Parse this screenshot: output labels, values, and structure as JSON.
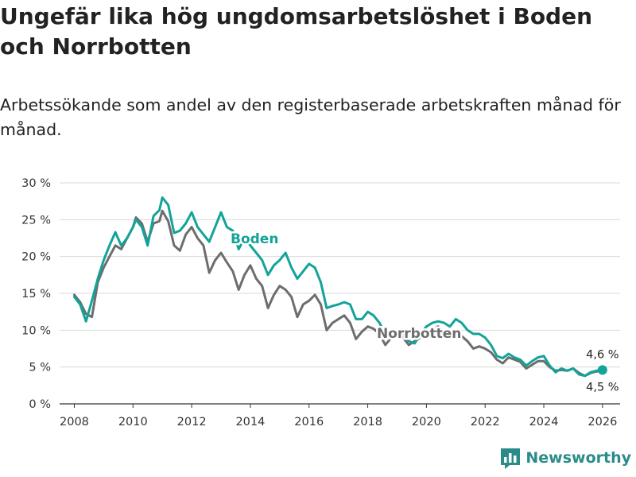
{
  "header": {
    "title": "Ungefär lika hög ungdomsarbetslöshet i Boden och Norrbotten",
    "subtitle": "Arbetssökande som andel av den registerbaserade arbetskraften månad för månad."
  },
  "branding": {
    "name": "Newsworthy",
    "logo_icon": "bar-chart-logo-icon"
  },
  "chart_data": {
    "type": "line",
    "title": "Ungefär lika hög ungdomsarbetslöshet i Boden och Norrbotten",
    "subtitle": "Arbetssökande som andel av den registerbaserade arbetskraften månad för månad.",
    "xlabel": "",
    "ylabel": "",
    "xlim": [
      2007.5,
      2026.6
    ],
    "ylim": [
      0,
      30
    ],
    "x_ticks": [
      2008,
      2010,
      2012,
      2014,
      2016,
      2018,
      2020,
      2022,
      2024,
      2026
    ],
    "x_tick_labels": [
      "2008",
      "2010",
      "2012",
      "2014",
      "2016",
      "2018",
      "2020",
      "2022",
      "2024",
      "2026"
    ],
    "y_ticks": [
      0,
      5,
      10,
      15,
      20,
      25,
      30
    ],
    "y_tick_labels": [
      "0 %",
      "5 %",
      "10 %",
      "15 %",
      "20 %",
      "25 %",
      "30 %"
    ],
    "grid": true,
    "series": [
      {
        "name": "Norrbotten",
        "color": "#6d6d6d",
        "label": "Norrbotten",
        "end_label": "4,5 %",
        "points": [
          [
            2008.0,
            14.8
          ],
          [
            2008.2,
            13.8
          ],
          [
            2008.4,
            12.2
          ],
          [
            2008.6,
            11.8
          ],
          [
            2008.8,
            16.5
          ],
          [
            2009.0,
            18.5
          ],
          [
            2009.2,
            20.0
          ],
          [
            2009.4,
            21.5
          ],
          [
            2009.6,
            21.0
          ],
          [
            2009.8,
            22.5
          ],
          [
            2010.0,
            24.0
          ],
          [
            2010.1,
            25.3
          ],
          [
            2010.3,
            24.5
          ],
          [
            2010.5,
            22.0
          ],
          [
            2010.7,
            24.5
          ],
          [
            2010.9,
            24.8
          ],
          [
            2011.0,
            26.2
          ],
          [
            2011.2,
            24.8
          ],
          [
            2011.4,
            21.5
          ],
          [
            2011.6,
            20.8
          ],
          [
            2011.8,
            23.0
          ],
          [
            2012.0,
            24.0
          ],
          [
            2012.2,
            22.5
          ],
          [
            2012.4,
            21.5
          ],
          [
            2012.6,
            17.8
          ],
          [
            2012.8,
            19.5
          ],
          [
            2013.0,
            20.5
          ],
          [
            2013.2,
            19.2
          ],
          [
            2013.4,
            18.0
          ],
          [
            2013.6,
            15.5
          ],
          [
            2013.8,
            17.5
          ],
          [
            2014.0,
            18.8
          ],
          [
            2014.2,
            17.0
          ],
          [
            2014.4,
            16.0
          ],
          [
            2014.6,
            13.0
          ],
          [
            2014.8,
            14.8
          ],
          [
            2015.0,
            16.0
          ],
          [
            2015.2,
            15.5
          ],
          [
            2015.4,
            14.5
          ],
          [
            2015.6,
            11.8
          ],
          [
            2015.8,
            13.5
          ],
          [
            2016.0,
            14.0
          ],
          [
            2016.2,
            14.8
          ],
          [
            2016.4,
            13.5
          ],
          [
            2016.6,
            10.0
          ],
          [
            2016.8,
            11.0
          ],
          [
            2017.0,
            11.5
          ],
          [
            2017.2,
            12.0
          ],
          [
            2017.4,
            11.0
          ],
          [
            2017.6,
            8.8
          ],
          [
            2017.8,
            9.8
          ],
          [
            2018.0,
            10.5
          ],
          [
            2018.2,
            10.2
          ],
          [
            2018.4,
            9.5
          ],
          [
            2018.6,
            8.0
          ],
          [
            2018.8,
            9.0
          ],
          [
            2019.0,
            9.5
          ],
          [
            2019.2,
            9.0
          ],
          [
            2019.4,
            8.0
          ],
          [
            2019.6,
            8.5
          ],
          [
            2019.8,
            9.0
          ],
          [
            2020.0,
            9.5
          ],
          [
            2020.2,
            10.2
          ],
          [
            2020.4,
            10.5
          ],
          [
            2020.6,
            9.8
          ],
          [
            2020.8,
            9.5
          ],
          [
            2021.0,
            9.5
          ],
          [
            2021.2,
            9.2
          ],
          [
            2021.4,
            8.5
          ],
          [
            2021.6,
            7.5
          ],
          [
            2021.8,
            7.8
          ],
          [
            2022.0,
            7.5
          ],
          [
            2022.2,
            7.0
          ],
          [
            2022.4,
            6.0
          ],
          [
            2022.6,
            5.5
          ],
          [
            2022.8,
            6.3
          ],
          [
            2023.0,
            6.0
          ],
          [
            2023.2,
            5.7
          ],
          [
            2023.4,
            4.8
          ],
          [
            2023.6,
            5.3
          ],
          [
            2023.8,
            5.8
          ],
          [
            2024.0,
            5.8
          ],
          [
            2024.2,
            5.0
          ],
          [
            2024.4,
            4.5
          ],
          [
            2024.6,
            4.6
          ],
          [
            2024.8,
            4.5
          ],
          [
            2025.0,
            4.8
          ],
          [
            2025.2,
            4.2
          ],
          [
            2025.4,
            3.8
          ],
          [
            2025.6,
            4.2
          ],
          [
            2025.8,
            4.4
          ],
          [
            2026.0,
            4.5
          ]
        ]
      },
      {
        "name": "Boden",
        "color": "#13a399",
        "label": "Boden",
        "end_label": "4,6 %",
        "points": [
          [
            2008.0,
            14.5
          ],
          [
            2008.2,
            13.5
          ],
          [
            2008.4,
            11.2
          ],
          [
            2008.6,
            14.0
          ],
          [
            2008.8,
            17.0
          ],
          [
            2009.0,
            19.5
          ],
          [
            2009.2,
            21.5
          ],
          [
            2009.4,
            23.3
          ],
          [
            2009.6,
            21.5
          ],
          [
            2009.8,
            22.5
          ],
          [
            2010.0,
            24.0
          ],
          [
            2010.1,
            25.0
          ],
          [
            2010.3,
            24.0
          ],
          [
            2010.5,
            21.5
          ],
          [
            2010.7,
            25.5
          ],
          [
            2010.9,
            26.3
          ],
          [
            2011.0,
            28.0
          ],
          [
            2011.2,
            27.0
          ],
          [
            2011.4,
            23.2
          ],
          [
            2011.6,
            23.5
          ],
          [
            2011.8,
            24.5
          ],
          [
            2012.0,
            26.0
          ],
          [
            2012.2,
            24.0
          ],
          [
            2012.4,
            23.0
          ],
          [
            2012.6,
            22.0
          ],
          [
            2012.8,
            24.0
          ],
          [
            2013.0,
            26.0
          ],
          [
            2013.2,
            24.0
          ],
          [
            2013.4,
            23.5
          ],
          [
            2013.6,
            21.0
          ],
          [
            2013.8,
            22.5
          ],
          [
            2014.0,
            21.5
          ],
          [
            2014.2,
            20.5
          ],
          [
            2014.4,
            19.5
          ],
          [
            2014.6,
            17.5
          ],
          [
            2014.8,
            18.8
          ],
          [
            2015.0,
            19.5
          ],
          [
            2015.2,
            20.5
          ],
          [
            2015.4,
            18.5
          ],
          [
            2015.6,
            17.0
          ],
          [
            2015.8,
            18.0
          ],
          [
            2016.0,
            19.0
          ],
          [
            2016.2,
            18.5
          ],
          [
            2016.4,
            16.5
          ],
          [
            2016.6,
            13.0
          ],
          [
            2016.8,
            13.3
          ],
          [
            2017.0,
            13.5
          ],
          [
            2017.2,
            13.8
          ],
          [
            2017.4,
            13.5
          ],
          [
            2017.6,
            11.5
          ],
          [
            2017.8,
            11.5
          ],
          [
            2018.0,
            12.5
          ],
          [
            2018.2,
            12.0
          ],
          [
            2018.4,
            11.0
          ],
          [
            2018.6,
            9.5
          ],
          [
            2018.8,
            9.0
          ],
          [
            2019.0,
            10.0
          ],
          [
            2019.2,
            9.5
          ],
          [
            2019.4,
            8.5
          ],
          [
            2019.6,
            8.2
          ],
          [
            2019.8,
            9.5
          ],
          [
            2020.0,
            10.5
          ],
          [
            2020.2,
            11.0
          ],
          [
            2020.4,
            11.2
          ],
          [
            2020.6,
            11.0
          ],
          [
            2020.8,
            10.5
          ],
          [
            2021.0,
            11.5
          ],
          [
            2021.2,
            11.0
          ],
          [
            2021.4,
            10.0
          ],
          [
            2021.6,
            9.5
          ],
          [
            2021.8,
            9.5
          ],
          [
            2022.0,
            9.0
          ],
          [
            2022.2,
            8.0
          ],
          [
            2022.4,
            6.5
          ],
          [
            2022.6,
            6.2
          ],
          [
            2022.8,
            6.8
          ],
          [
            2023.0,
            6.3
          ],
          [
            2023.2,
            6.0
          ],
          [
            2023.4,
            5.2
          ],
          [
            2023.6,
            5.8
          ],
          [
            2023.8,
            6.3
          ],
          [
            2024.0,
            6.5
          ],
          [
            2024.2,
            5.2
          ],
          [
            2024.4,
            4.3
          ],
          [
            2024.6,
            4.8
          ],
          [
            2024.8,
            4.5
          ],
          [
            2025.0,
            4.8
          ],
          [
            2025.2,
            4.0
          ],
          [
            2025.4,
            3.8
          ],
          [
            2025.6,
            4.3
          ],
          [
            2025.8,
            4.5
          ],
          [
            2026.0,
            4.6
          ]
        ]
      }
    ]
  }
}
